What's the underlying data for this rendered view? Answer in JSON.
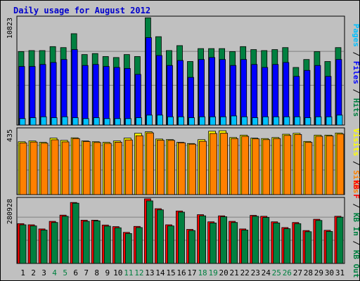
{
  "title": "Daily usage for August 2012",
  "chart_data": [
    {
      "type": "bar",
      "categories": [
        "1",
        "2",
        "3",
        "4",
        "5",
        "6",
        "7",
        "8",
        "9",
        "10",
        "11",
        "12",
        "13",
        "14",
        "15",
        "16",
        "17",
        "18",
        "19",
        "20",
        "21",
        "22",
        "23",
        "24",
        "25",
        "26",
        "27",
        "28",
        "29",
        "30",
        "31"
      ],
      "ymax_label": "10823",
      "ymax": 10823,
      "right_labels": [
        "Pages",
        "Files",
        "Hits"
      ],
      "series": [
        {
          "name": "Hits",
          "color": "#008040",
          "values": [
            7400,
            7500,
            7500,
            7900,
            7800,
            9200,
            7100,
            7200,
            6900,
            6800,
            7100,
            6900,
            10800,
            8900,
            7500,
            8000,
            6400,
            7700,
            7700,
            7700,
            7400,
            7900,
            7600,
            7500,
            7600,
            7800,
            5800,
            6600,
            7400,
            6400,
            7800
          ]
        },
        {
          "name": "Files",
          "color": "#0000ff",
          "values": [
            5900,
            5900,
            6100,
            6300,
            6600,
            7600,
            6000,
            6100,
            5900,
            5800,
            5700,
            5100,
            8800,
            7000,
            6000,
            6500,
            4800,
            6600,
            6800,
            6600,
            6000,
            6600,
            6100,
            5800,
            6100,
            6300,
            4900,
            5500,
            6000,
            4900,
            6600
          ]
        },
        {
          "name": "Pages",
          "color": "#00c0ff",
          "values": [
            650,
            740,
            830,
            740,
            830,
            740,
            650,
            740,
            650,
            650,
            650,
            740,
            1000,
            1000,
            830,
            830,
            740,
            830,
            830,
            830,
            920,
            830,
            740,
            830,
            830,
            830,
            830,
            740,
            830,
            830,
            1000
          ]
        }
      ]
    },
    {
      "type": "bar",
      "categories": [
        "1",
        "2",
        "3",
        "4",
        "5",
        "6",
        "7",
        "8",
        "9",
        "10",
        "11",
        "12",
        "13",
        "14",
        "15",
        "16",
        "17",
        "18",
        "19",
        "20",
        "21",
        "22",
        "23",
        "24",
        "25",
        "26",
        "27",
        "28",
        "29",
        "30",
        "31"
      ],
      "ymax_label": "435",
      "ymax": 435,
      "right_labels": [
        "Visits",
        "Sites"
      ],
      "series": [
        {
          "name": "Visits",
          "color": "#ffff00",
          "values": [
            352,
            357,
            348,
            376,
            361,
            378,
            357,
            352,
            348,
            357,
            376,
            408,
            418,
            370,
            366,
            348,
            340,
            366,
            422,
            425,
            380,
            396,
            376,
            373,
            380,
            402,
            408,
            354,
            396,
            396,
            410
          ]
        },
        {
          "name": "Sites",
          "color": "#ff8000",
          "values": [
            344,
            350,
            342,
            365,
            351,
            373,
            353,
            347,
            341,
            349,
            364,
            392,
            411,
            362,
            361,
            345,
            336,
            355,
            407,
            409,
            373,
            388,
            371,
            366,
            373,
            394,
            400,
            348,
            388,
            390,
            403
          ]
        }
      ]
    },
    {
      "type": "bar",
      "categories": [
        "1",
        "2",
        "3",
        "4",
        "5",
        "6",
        "7",
        "8",
        "9",
        "10",
        "11",
        "12",
        "13",
        "14",
        "15",
        "16",
        "17",
        "18",
        "19",
        "20",
        "21",
        "22",
        "23",
        "24",
        "25",
        "26",
        "27",
        "28",
        "29",
        "30",
        "31"
      ],
      "ymax_label": "280928",
      "ymax": 280928,
      "right_labels": [
        "KB F",
        "KB In",
        "KB Out"
      ],
      "series": [
        {
          "name": "KB F",
          "color": "#ff0000",
          "values": [
            173000,
            168000,
            150000,
            183000,
            210000,
            265000,
            188000,
            188000,
            167000,
            160000,
            135000,
            161000,
            280928,
            238000,
            168000,
            228000,
            148000,
            212000,
            181000,
            207000,
            183000,
            150000,
            209000,
            205000,
            181000,
            156000,
            178000,
            143000,
            192000,
            144000,
            205000
          ]
        },
        {
          "name": "KB Out",
          "color": "#008040",
          "values": [
            168000,
            163000,
            145000,
            178000,
            205000,
            262000,
            183000,
            185000,
            162000,
            155000,
            130000,
            156000,
            272000,
            233000,
            163000,
            223000,
            143000,
            207000,
            176000,
            203000,
            178000,
            145000,
            205000,
            200000,
            176000,
            151000,
            173000,
            138000,
            187000,
            139000,
            201000
          ]
        }
      ]
    }
  ],
  "x_label_colors": {
    "default": "#000000",
    "weekend": "#008040"
  },
  "weekend_days": [
    "4",
    "5",
    "11",
    "12",
    "18",
    "19",
    "25",
    "26"
  ]
}
